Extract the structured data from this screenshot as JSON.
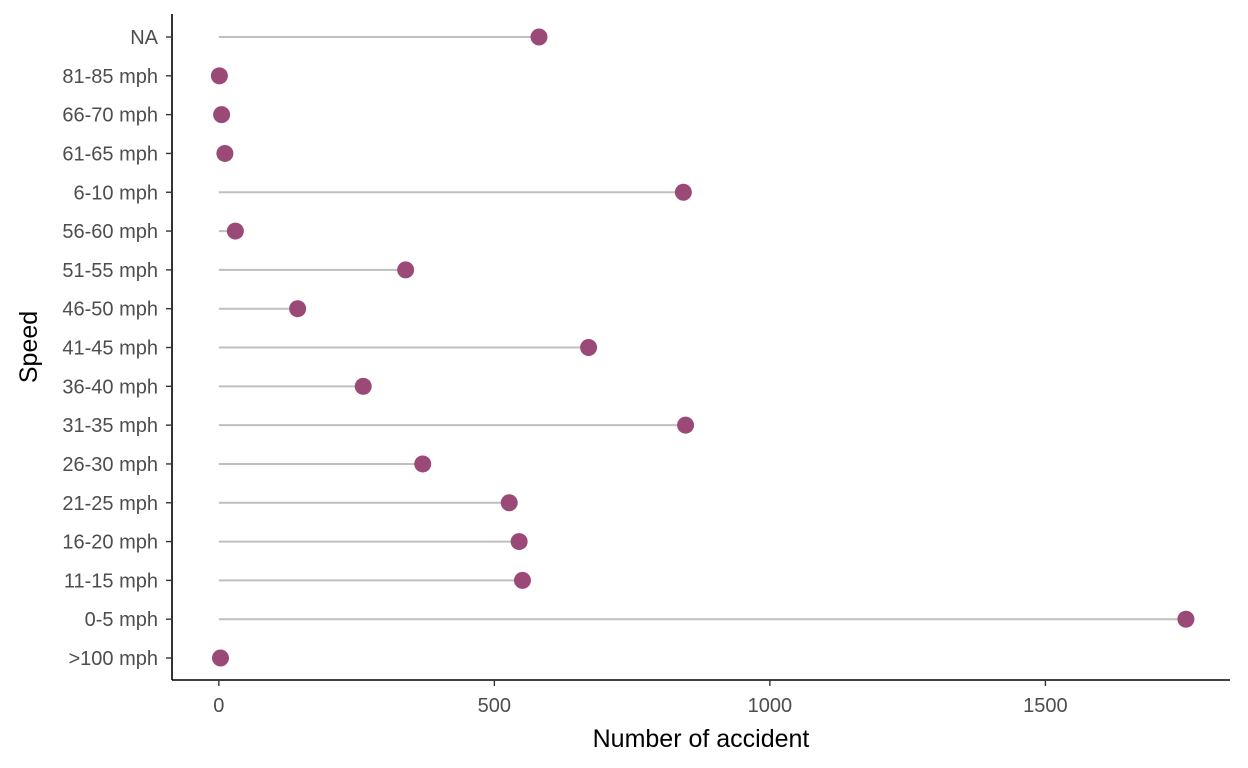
{
  "chart_data": {
    "type": "lollipop",
    "orientation": "horizontal",
    "xlabel": "Number of accident",
    "ylabel": "Speed",
    "xlim": [
      -85,
      1835
    ],
    "xticks": [
      0,
      500,
      1000,
      1500
    ],
    "grid": false,
    "colors": {
      "point": "#9b4a78",
      "stem": "#bfbfbf"
    },
    "categories": [
      ">100 mph",
      "0-5 mph",
      "11-15 mph",
      "16-20 mph",
      "21-25 mph",
      "26-30 mph",
      "31-35 mph",
      "36-40 mph",
      "41-45 mph",
      "46-50 mph",
      "51-55 mph",
      "56-60 mph",
      "6-10 mph",
      "61-65 mph",
      "66-70 mph",
      "81-85 mph",
      "NA"
    ],
    "values": [
      3,
      1755,
      551,
      545,
      527,
      370,
      847,
      262,
      671,
      143,
      339,
      30,
      843,
      11,
      5,
      1,
      581
    ]
  }
}
